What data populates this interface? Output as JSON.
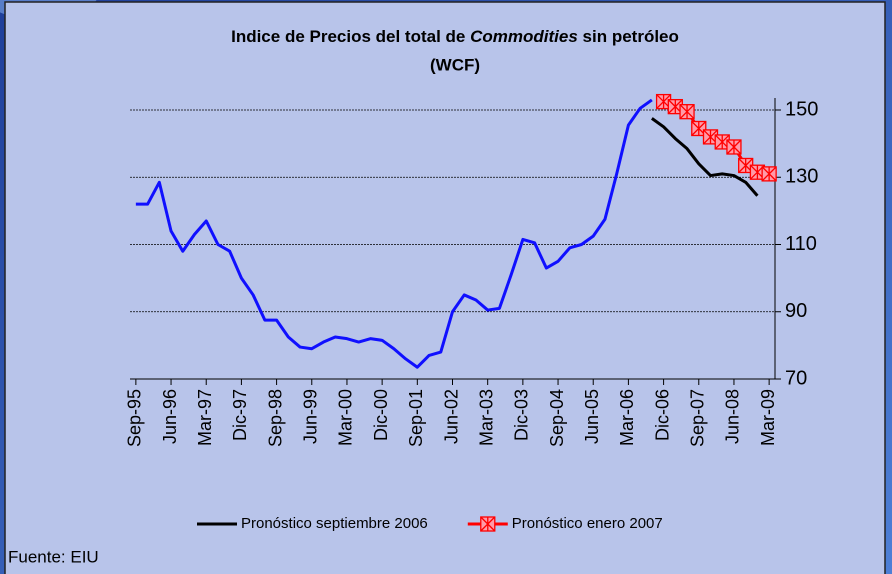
{
  "chart_data": {
    "type": "line",
    "title": [
      "Indice de Precios del total de",
      "Commodities",
      "sin petróleo"
    ],
    "subtitle": "(WCF)",
    "source": "Fuente: EIU",
    "categories": [
      "Sep-95",
      null,
      null,
      "Jun-96",
      null,
      null,
      "Mar-97",
      null,
      null,
      "Dic-97",
      null,
      null,
      "Sep-98",
      null,
      null,
      "Jun-99",
      null,
      null,
      "Mar-00",
      null,
      null,
      "Dic-00",
      null,
      null,
      "Sep-01",
      null,
      null,
      "Jun-02",
      null,
      null,
      "Mar-03",
      null,
      null,
      "Dic-03",
      null,
      null,
      "Sep-04",
      null,
      null,
      "Jun-05",
      null,
      null,
      "Mar-06",
      null,
      null,
      "Dic-06",
      null,
      null,
      "Sep-07",
      null,
      null,
      "Jun-08",
      null,
      null,
      "Mar-09"
    ],
    "series": [
      {
        "color": "#1010ff",
        "values": [
          122,
          122,
          128.5,
          114,
          108,
          113,
          117,
          110,
          108,
          100,
          95,
          87.5,
          87.5,
          82.5,
          79.5,
          79,
          81,
          82.5,
          82,
          81,
          82,
          81.5,
          79,
          76,
          73.5,
          77,
          78,
          90,
          95,
          93.5,
          90.5,
          91,
          101,
          111.5,
          110.5,
          103,
          105,
          109,
          110,
          112.5,
          117.5,
          131,
          145.5,
          150.5,
          153,
          null,
          null,
          null,
          null,
          null,
          null,
          null,
          null,
          null,
          null
        ]
      },
      {
        "name": "Pronóstico septiembre 2006",
        "color": "#000000",
        "values": [
          null,
          null,
          null,
          null,
          null,
          null,
          null,
          null,
          null,
          null,
          null,
          null,
          null,
          null,
          null,
          null,
          null,
          null,
          null,
          null,
          null,
          null,
          null,
          null,
          null,
          null,
          null,
          null,
          null,
          null,
          null,
          null,
          null,
          null,
          null,
          null,
          null,
          null,
          null,
          null,
          null,
          null,
          null,
          null,
          147.5,
          145,
          141.5,
          138.5,
          134,
          130.5,
          131,
          130.5,
          128.5,
          124.5,
          null
        ]
      },
      {
        "name": "Pronóstico enero 2007",
        "color": "#ff0000",
        "marker": "square-x",
        "values": [
          null,
          null,
          null,
          null,
          null,
          null,
          null,
          null,
          null,
          null,
          null,
          null,
          null,
          null,
          null,
          null,
          null,
          null,
          null,
          null,
          null,
          null,
          null,
          null,
          null,
          null,
          null,
          null,
          null,
          null,
          null,
          null,
          null,
          null,
          null,
          null,
          null,
          null,
          null,
          null,
          null,
          null,
          null,
          null,
          null,
          152.5,
          151,
          149.5,
          144.5,
          142,
          140.5,
          139,
          133.5,
          131.5,
          131
        ]
      }
    ],
    "ylim": [
      70,
      150
    ],
    "yticks": [
      70,
      90,
      110,
      130,
      150
    ],
    "grid": true,
    "legend": "bottom"
  }
}
